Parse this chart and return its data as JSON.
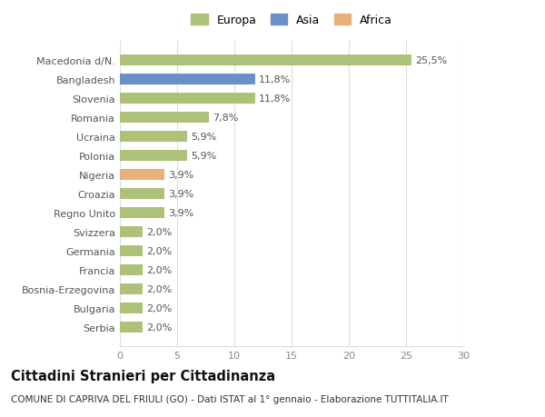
{
  "categories": [
    "Serbia",
    "Bulgaria",
    "Bosnia-Erzegovina",
    "Francia",
    "Germania",
    "Svizzera",
    "Regno Unito",
    "Croazia",
    "Nigeria",
    "Polonia",
    "Ucraina",
    "Romania",
    "Slovenia",
    "Bangladesh",
    "Macedonia d/N."
  ],
  "values": [
    2.0,
    2.0,
    2.0,
    2.0,
    2.0,
    2.0,
    3.9,
    3.9,
    3.9,
    5.9,
    5.9,
    7.8,
    11.8,
    11.8,
    25.5
  ],
  "labels": [
    "2,0%",
    "2,0%",
    "2,0%",
    "2,0%",
    "2,0%",
    "2,0%",
    "3,9%",
    "3,9%",
    "3,9%",
    "5,9%",
    "5,9%",
    "7,8%",
    "11,8%",
    "11,8%",
    "25,5%"
  ],
  "colors": [
    "#adc178",
    "#adc178",
    "#adc178",
    "#adc178",
    "#adc178",
    "#adc178",
    "#adc178",
    "#adc178",
    "#e8b07a",
    "#adc178",
    "#adc178",
    "#adc178",
    "#adc178",
    "#6b90c8",
    "#adc178"
  ],
  "legend_labels": [
    "Europa",
    "Asia",
    "Africa"
  ],
  "legend_colors": [
    "#adc178",
    "#6b90c8",
    "#e8b07a"
  ],
  "xlim": [
    0,
    30
  ],
  "xticks": [
    0,
    5,
    10,
    15,
    20,
    25,
    30
  ],
  "title": "Cittadini Stranieri per Cittadinanza",
  "subtitle": "COMUNE DI CAPRIVA DEL FRIULI (GO) - Dati ISTAT al 1° gennaio - Elaborazione TUTTITALIA.IT",
  "bg_color": "#ffffff",
  "grid_color": "#dddddd",
  "bar_height": 0.55,
  "label_fontsize": 8,
  "tick_fontsize": 8,
  "title_fontsize": 10.5,
  "subtitle_fontsize": 7.5
}
